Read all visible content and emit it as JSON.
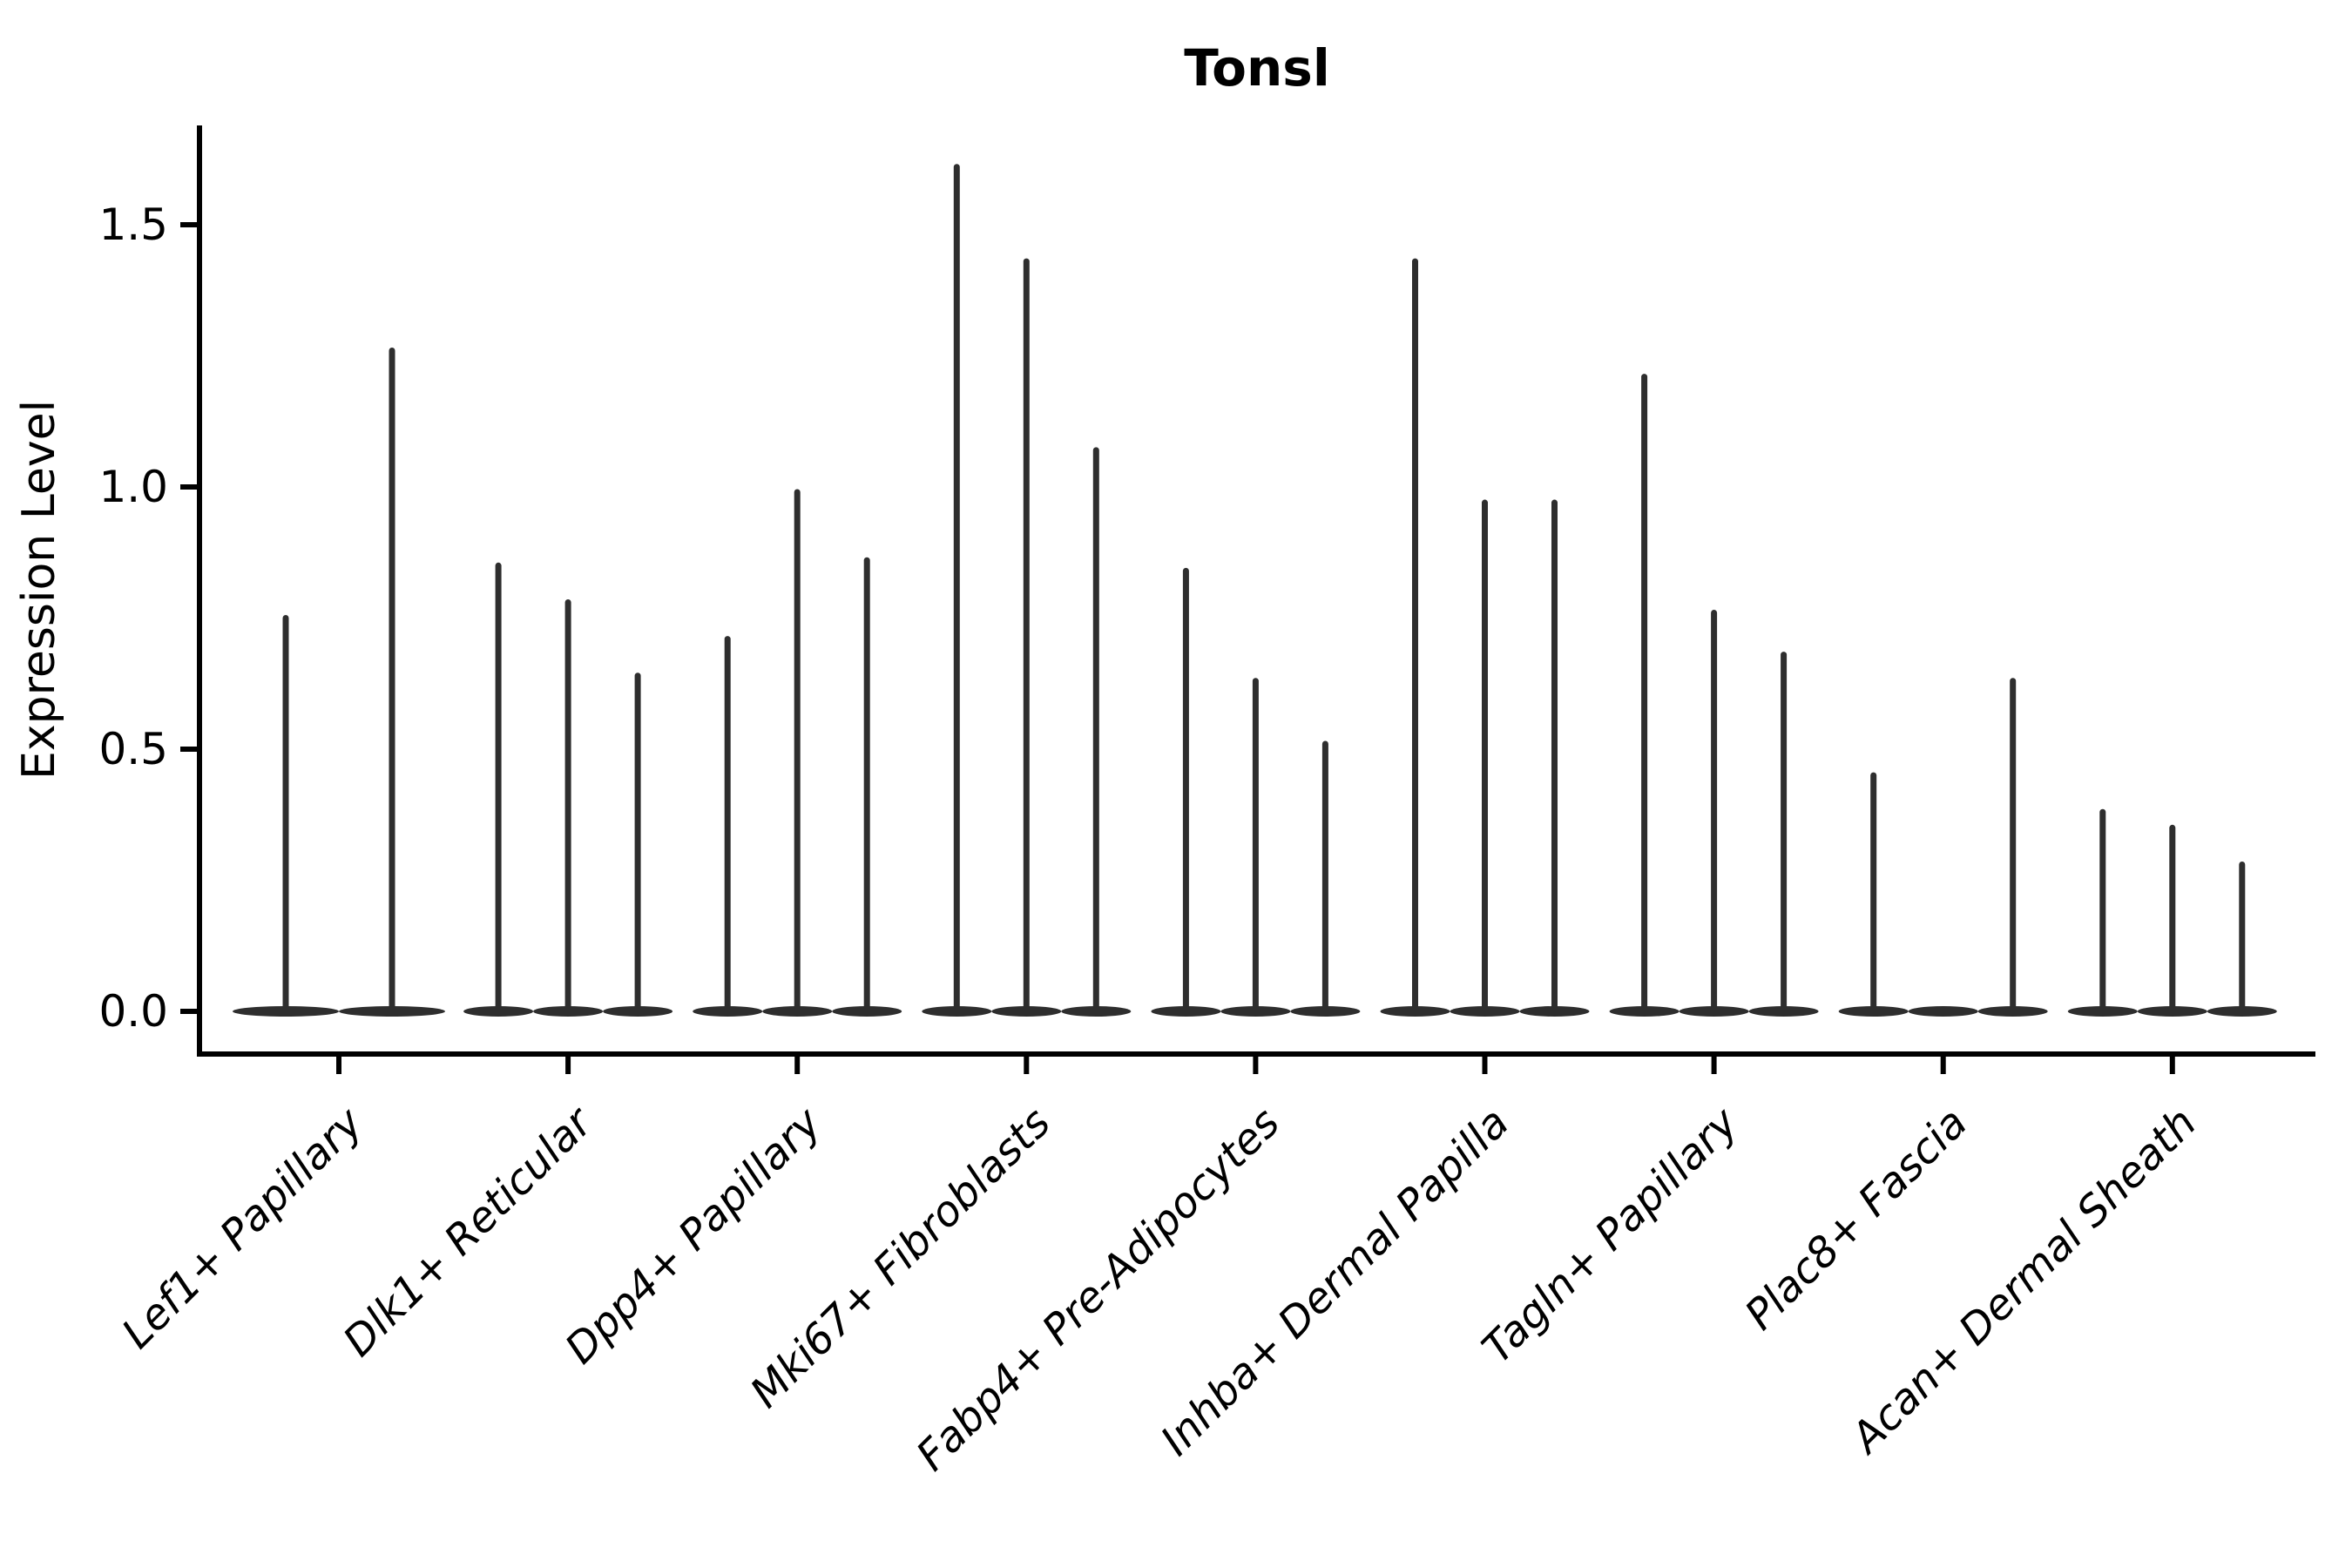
{
  "title": "Tonsl",
  "ylabel": "Expression Level",
  "colors": {
    "background": "#ffffff",
    "violin": "#2e2e2e",
    "axis": "#000000",
    "text": "#000000"
  },
  "chart_data": {
    "type": "violin",
    "title": "Tonsl",
    "xlabel": "",
    "ylabel": "Expression Level",
    "ylim": [
      -0.08,
      1.69
    ],
    "yticks": [
      0.0,
      0.5,
      1.0,
      1.5
    ],
    "ytick_labels": [
      "0.0",
      "0.5",
      "1.0",
      "1.5"
    ],
    "grid": false,
    "legend": "none",
    "x_tick_rotation": 45,
    "categories": [
      "Lef1+ Papillary",
      "Dlk1+ Reticular",
      "Dpp4+ Papillary",
      "Mki67+ Fibroblasts",
      "Fabp4+ Pre-Adipocytes",
      "Inhba+ Dermal Papilla",
      "Tagln+ Papillary",
      "Plac8+ Fascia",
      "Acan+ Dermal Sheath"
    ],
    "series": [
      {
        "name": "Lef1+ Papillary",
        "values": [
          0.75,
          1.26
        ]
      },
      {
        "name": "Dlk1+ Reticular",
        "values": [
          0.85,
          0.78,
          0.64
        ]
      },
      {
        "name": "Dpp4+ Papillary",
        "values": [
          0.71,
          0.99,
          0.86
        ]
      },
      {
        "name": "Mki67+ Fibroblasts",
        "values": [
          1.61,
          1.43,
          1.07
        ]
      },
      {
        "name": "Fabp4+ Pre-Adipocytes",
        "values": [
          0.84,
          0.63,
          0.51
        ]
      },
      {
        "name": "Inhba+ Dermal Papilla",
        "values": [
          1.43,
          0.97,
          0.97
        ]
      },
      {
        "name": "Tagln+ Papillary",
        "values": [
          1.21,
          0.76,
          0.68
        ]
      },
      {
        "name": "Plac8+ Fascia",
        "values": [
          0.45,
          0.0,
          0.63
        ]
      },
      {
        "name": "Acan+ Dermal Sheath",
        "values": [
          0.38,
          0.35,
          0.28
        ]
      }
    ],
    "note": "Violin plot of single-cell expression; each group shows narrow spike-like violins (sparse expression). Value = top of each density spike in Expression Level units. 0.0 entries are flat violins with no spike."
  }
}
